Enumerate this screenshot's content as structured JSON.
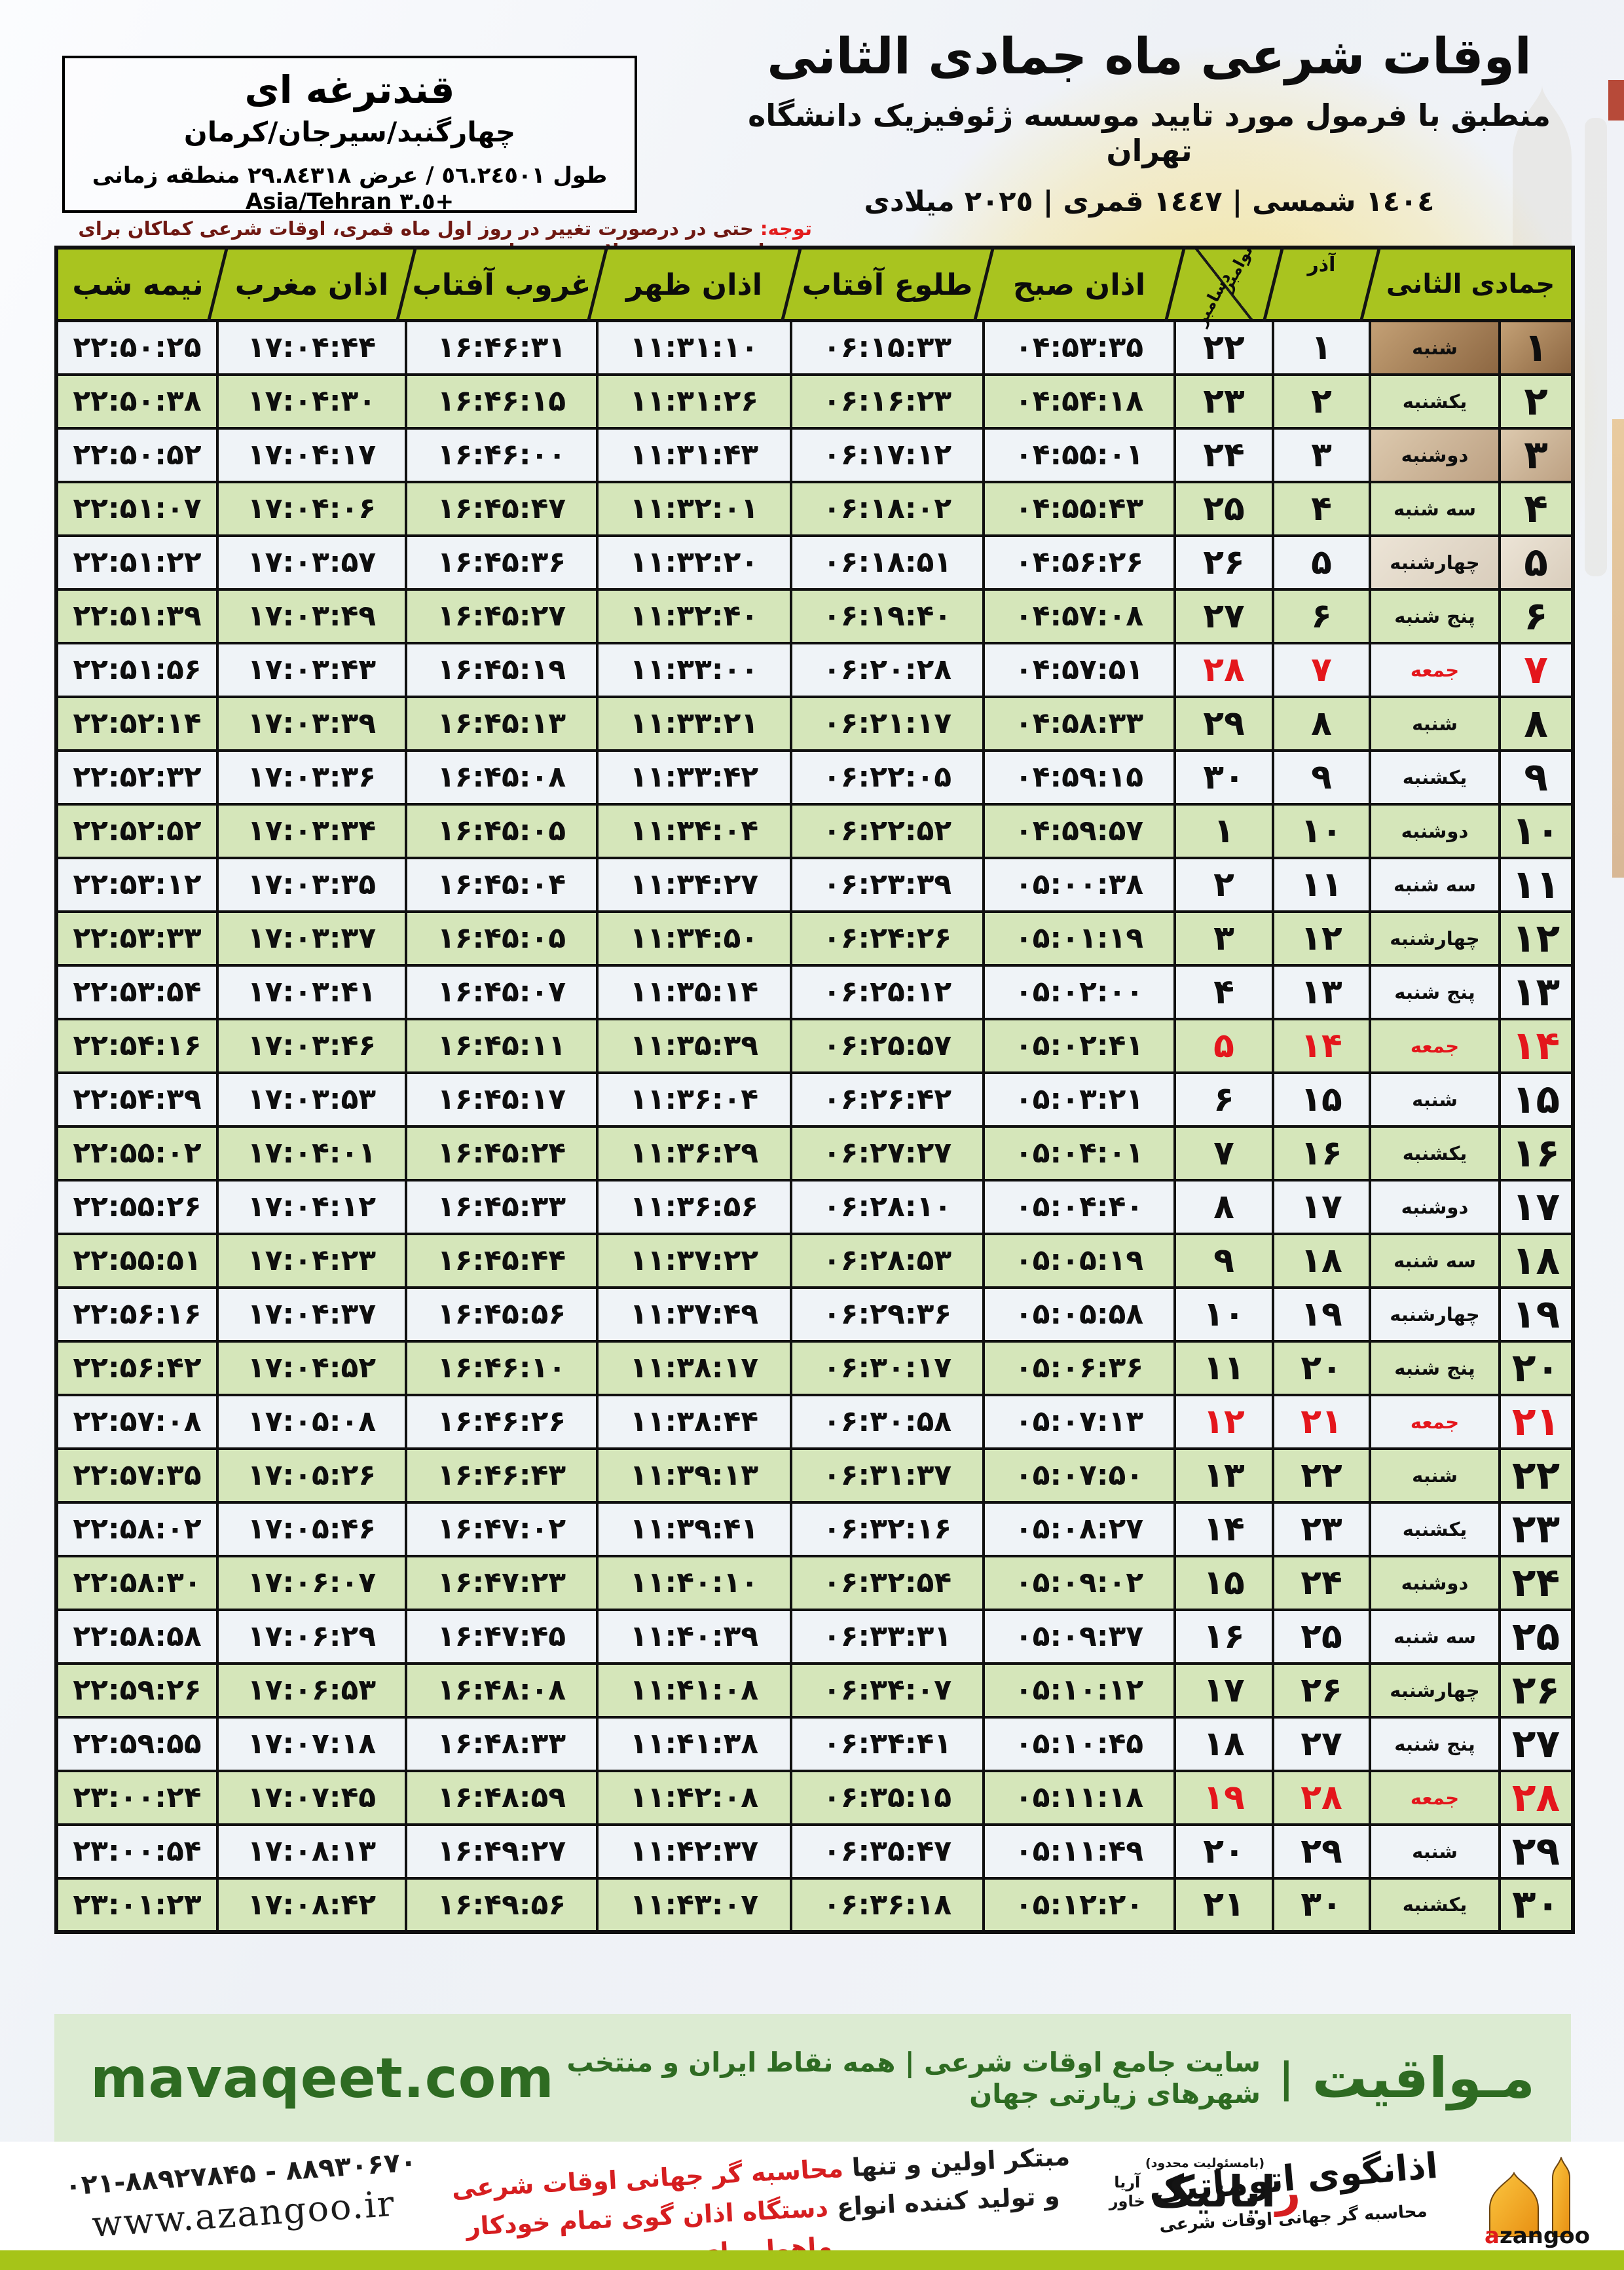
{
  "header": {
    "title": "اوقات شرعی ماه جمادی الثانی",
    "subtitle": "منطبق با فرمول مورد تایید موسسه ژئوفیزیک دانشگاه تهران",
    "dates": "١٤٠٤ شمسی | ١٤٤٧ قمری | ٢٠٢٥ میلادی"
  },
  "location": {
    "name": "قندترغه ای",
    "region": "چهارگنبد/سیرجان/کرمان",
    "coordinates": "طول ٥٦.٢٤٥٠١ / عرض ٢٩.٨٤٣١٨ منطقه زمانی +٣.٥ Asia/Tehran"
  },
  "notice": {
    "label": "توجه:",
    "text": " حتی در درصورت تغییر در روز اول ماه قمری، اوقات شرعی کماکان برای روزهای شمسی و میلادی معتبر است."
  },
  "table": {
    "headers": {
      "month_hijri": "جمادی الثانی",
      "azar": "آذر",
      "greg_top": "نوامبر",
      "greg_bottom": "دسامبر",
      "fajr": "اذان صبح",
      "sunrise": "طلوع آفتاب",
      "dhuhr": "اذان ظهر",
      "sunset": "غروب آفتاب",
      "maghrib": "اذان مغرب",
      "midnight": "نیمه شب"
    },
    "rows": [
      {
        "day": "۱",
        "weekday": "شنبه",
        "azar": "۱",
        "greg": "۲۲",
        "fajr": "۰۴:۵۳:۳۵",
        "sunrise": "۰۶:۱۵:۳۳",
        "dhuhr": "۱۱:۳۱:۱۰",
        "sunset": "۱۶:۴۶:۳۱",
        "maghrib": "۱۷:۰۴:۴۴",
        "midnight": "۲۲:۵۰:۲۵",
        "friday": false
      },
      {
        "day": "۲",
        "weekday": "یکشنبه",
        "azar": "۲",
        "greg": "۲۳",
        "fajr": "۰۴:۵۴:۱۸",
        "sunrise": "۰۶:۱۶:۲۳",
        "dhuhr": "۱۱:۳۱:۲۶",
        "sunset": "۱۶:۴۶:۱۵",
        "maghrib": "۱۷:۰۴:۳۰",
        "midnight": "۲۲:۵۰:۳۸",
        "friday": false
      },
      {
        "day": "۳",
        "weekday": "دوشنبه",
        "azar": "۳",
        "greg": "۲۴",
        "fajr": "۰۴:۵۵:۰۱",
        "sunrise": "۰۶:۱۷:۱۲",
        "dhuhr": "۱۱:۳۱:۴۳",
        "sunset": "۱۶:۴۶:۰۰",
        "maghrib": "۱۷:۰۴:۱۷",
        "midnight": "۲۲:۵۰:۵۲",
        "friday": false
      },
      {
        "day": "۴",
        "weekday": "سه شنبه",
        "azar": "۴",
        "greg": "۲۵",
        "fajr": "۰۴:۵۵:۴۳",
        "sunrise": "۰۶:۱۸:۰۲",
        "dhuhr": "۱۱:۳۲:۰۱",
        "sunset": "۱۶:۴۵:۴۷",
        "maghrib": "۱۷:۰۴:۰۶",
        "midnight": "۲۲:۵۱:۰۷",
        "friday": false
      },
      {
        "day": "۵",
        "weekday": "چهارشنبه",
        "azar": "۵",
        "greg": "۲۶",
        "fajr": "۰۴:۵۶:۲۶",
        "sunrise": "۰۶:۱۸:۵۱",
        "dhuhr": "۱۱:۳۲:۲۰",
        "sunset": "۱۶:۴۵:۳۶",
        "maghrib": "۱۷:۰۳:۵۷",
        "midnight": "۲۲:۵۱:۲۲",
        "friday": false
      },
      {
        "day": "۶",
        "weekday": "پنج شنبه",
        "azar": "۶",
        "greg": "۲۷",
        "fajr": "۰۴:۵۷:۰۸",
        "sunrise": "۰۶:۱۹:۴۰",
        "dhuhr": "۱۱:۳۲:۴۰",
        "sunset": "۱۶:۴۵:۲۷",
        "maghrib": "۱۷:۰۳:۴۹",
        "midnight": "۲۲:۵۱:۳۹",
        "friday": false
      },
      {
        "day": "۷",
        "weekday": "جمعه",
        "azar": "۷",
        "greg": "۲۸",
        "fajr": "۰۴:۵۷:۵۱",
        "sunrise": "۰۶:۲۰:۲۸",
        "dhuhr": "۱۱:۳۳:۰۰",
        "sunset": "۱۶:۴۵:۱۹",
        "maghrib": "۱۷:۰۳:۴۳",
        "midnight": "۲۲:۵۱:۵۶",
        "friday": true
      },
      {
        "day": "۸",
        "weekday": "شنبه",
        "azar": "۸",
        "greg": "۲۹",
        "fajr": "۰۴:۵۸:۳۳",
        "sunrise": "۰۶:۲۱:۱۷",
        "dhuhr": "۱۱:۳۳:۲۱",
        "sunset": "۱۶:۴۵:۱۳",
        "maghrib": "۱۷:۰۳:۳۹",
        "midnight": "۲۲:۵۲:۱۴",
        "friday": false
      },
      {
        "day": "۹",
        "weekday": "یکشنبه",
        "azar": "۹",
        "greg": "۳۰",
        "fajr": "۰۴:۵۹:۱۵",
        "sunrise": "۰۶:۲۲:۰۵",
        "dhuhr": "۱۱:۳۳:۴۲",
        "sunset": "۱۶:۴۵:۰۸",
        "maghrib": "۱۷:۰۳:۳۶",
        "midnight": "۲۲:۵۲:۳۲",
        "friday": false
      },
      {
        "day": "۱۰",
        "weekday": "دوشنبه",
        "azar": "۱۰",
        "greg": "۱",
        "fajr": "۰۴:۵۹:۵۷",
        "sunrise": "۰۶:۲۲:۵۲",
        "dhuhr": "۱۱:۳۴:۰۴",
        "sunset": "۱۶:۴۵:۰۵",
        "maghrib": "۱۷:۰۳:۳۴",
        "midnight": "۲۲:۵۲:۵۲",
        "friday": false
      },
      {
        "day": "۱۱",
        "weekday": "سه شنبه",
        "azar": "۱۱",
        "greg": "۲",
        "fajr": "۰۵:۰۰:۳۸",
        "sunrise": "۰۶:۲۳:۳۹",
        "dhuhr": "۱۱:۳۴:۲۷",
        "sunset": "۱۶:۴۵:۰۴",
        "maghrib": "۱۷:۰۳:۳۵",
        "midnight": "۲۲:۵۳:۱۲",
        "friday": false
      },
      {
        "day": "۱۲",
        "weekday": "چهارشنبه",
        "azar": "۱۲",
        "greg": "۳",
        "fajr": "۰۵:۰۱:۱۹",
        "sunrise": "۰۶:۲۴:۲۶",
        "dhuhr": "۱۱:۳۴:۵۰",
        "sunset": "۱۶:۴۵:۰۵",
        "maghrib": "۱۷:۰۳:۳۷",
        "midnight": "۲۲:۵۳:۳۳",
        "friday": false
      },
      {
        "day": "۱۳",
        "weekday": "پنج شنبه",
        "azar": "۱۳",
        "greg": "۴",
        "fajr": "۰۵:۰۲:۰۰",
        "sunrise": "۰۶:۲۵:۱۲",
        "dhuhr": "۱۱:۳۵:۱۴",
        "sunset": "۱۶:۴۵:۰۷",
        "maghrib": "۱۷:۰۳:۴۱",
        "midnight": "۲۲:۵۳:۵۴",
        "friday": false
      },
      {
        "day": "۱۴",
        "weekday": "جمعه",
        "azar": "۱۴",
        "greg": "۵",
        "fajr": "۰۵:۰۲:۴۱",
        "sunrise": "۰۶:۲۵:۵۷",
        "dhuhr": "۱۱:۳۵:۳۹",
        "sunset": "۱۶:۴۵:۱۱",
        "maghrib": "۱۷:۰۳:۴۶",
        "midnight": "۲۲:۵۴:۱۶",
        "friday": true
      },
      {
        "day": "۱۵",
        "weekday": "شنبه",
        "azar": "۱۵",
        "greg": "۶",
        "fajr": "۰۵:۰۳:۲۱",
        "sunrise": "۰۶:۲۶:۴۲",
        "dhuhr": "۱۱:۳۶:۰۴",
        "sunset": "۱۶:۴۵:۱۷",
        "maghrib": "۱۷:۰۳:۵۳",
        "midnight": "۲۲:۵۴:۳۹",
        "friday": false
      },
      {
        "day": "۱۶",
        "weekday": "یکشنبه",
        "azar": "۱۶",
        "greg": "۷",
        "fajr": "۰۵:۰۴:۰۱",
        "sunrise": "۰۶:۲۷:۲۷",
        "dhuhr": "۱۱:۳۶:۲۹",
        "sunset": "۱۶:۴۵:۲۴",
        "maghrib": "۱۷:۰۴:۰۱",
        "midnight": "۲۲:۵۵:۰۲",
        "friday": false
      },
      {
        "day": "۱۷",
        "weekday": "دوشنبه",
        "azar": "۱۷",
        "greg": "۸",
        "fajr": "۰۵:۰۴:۴۰",
        "sunrise": "۰۶:۲۸:۱۰",
        "dhuhr": "۱۱:۳۶:۵۶",
        "sunset": "۱۶:۴۵:۳۳",
        "maghrib": "۱۷:۰۴:۱۲",
        "midnight": "۲۲:۵۵:۲۶",
        "friday": false
      },
      {
        "day": "۱۸",
        "weekday": "سه شنبه",
        "azar": "۱۸",
        "greg": "۹",
        "fajr": "۰۵:۰۵:۱۹",
        "sunrise": "۰۶:۲۸:۵۳",
        "dhuhr": "۱۱:۳۷:۲۲",
        "sunset": "۱۶:۴۵:۴۴",
        "maghrib": "۱۷:۰۴:۲۳",
        "midnight": "۲۲:۵۵:۵۱",
        "friday": false
      },
      {
        "day": "۱۹",
        "weekday": "چهارشنبه",
        "azar": "۱۹",
        "greg": "۱۰",
        "fajr": "۰۵:۰۵:۵۸",
        "sunrise": "۰۶:۲۹:۳۶",
        "dhuhr": "۱۱:۳۷:۴۹",
        "sunset": "۱۶:۴۵:۵۶",
        "maghrib": "۱۷:۰۴:۳۷",
        "midnight": "۲۲:۵۶:۱۶",
        "friday": false
      },
      {
        "day": "۲۰",
        "weekday": "پنج شنبه",
        "azar": "۲۰",
        "greg": "۱۱",
        "fajr": "۰۵:۰۶:۳۶",
        "sunrise": "۰۶:۳۰:۱۷",
        "dhuhr": "۱۱:۳۸:۱۷",
        "sunset": "۱۶:۴۶:۱۰",
        "maghrib": "۱۷:۰۴:۵۲",
        "midnight": "۲۲:۵۶:۴۲",
        "friday": false
      },
      {
        "day": "۲۱",
        "weekday": "جمعه",
        "azar": "۲۱",
        "greg": "۱۲",
        "fajr": "۰۵:۰۷:۱۳",
        "sunrise": "۰۶:۳۰:۵۸",
        "dhuhr": "۱۱:۳۸:۴۴",
        "sunset": "۱۶:۴۶:۲۶",
        "maghrib": "۱۷:۰۵:۰۸",
        "midnight": "۲۲:۵۷:۰۸",
        "friday": true
      },
      {
        "day": "۲۲",
        "weekday": "شنبه",
        "azar": "۲۲",
        "greg": "۱۳",
        "fajr": "۰۵:۰۷:۵۰",
        "sunrise": "۰۶:۳۱:۳۷",
        "dhuhr": "۱۱:۳۹:۱۳",
        "sunset": "۱۶:۴۶:۴۳",
        "maghrib": "۱۷:۰۵:۲۶",
        "midnight": "۲۲:۵۷:۳۵",
        "friday": false
      },
      {
        "day": "۲۳",
        "weekday": "یکشنبه",
        "azar": "۲۳",
        "greg": "۱۴",
        "fajr": "۰۵:۰۸:۲۷",
        "sunrise": "۰۶:۳۲:۱۶",
        "dhuhr": "۱۱:۳۹:۴۱",
        "sunset": "۱۶:۴۷:۰۲",
        "maghrib": "۱۷:۰۵:۴۶",
        "midnight": "۲۲:۵۸:۰۲",
        "friday": false
      },
      {
        "day": "۲۴",
        "weekday": "دوشنبه",
        "azar": "۲۴",
        "greg": "۱۵",
        "fajr": "۰۵:۰۹:۰۲",
        "sunrise": "۰۶:۳۲:۵۴",
        "dhuhr": "۱۱:۴۰:۱۰",
        "sunset": "۱۶:۴۷:۲۳",
        "maghrib": "۱۷:۰۶:۰۷",
        "midnight": "۲۲:۵۸:۳۰",
        "friday": false
      },
      {
        "day": "۲۵",
        "weekday": "سه شنبه",
        "azar": "۲۵",
        "greg": "۱۶",
        "fajr": "۰۵:۰۹:۳۷",
        "sunrise": "۰۶:۳۳:۳۱",
        "dhuhr": "۱۱:۴۰:۳۹",
        "sunset": "۱۶:۴۷:۴۵",
        "maghrib": "۱۷:۰۶:۲۹",
        "midnight": "۲۲:۵۸:۵۸",
        "friday": false
      },
      {
        "day": "۲۶",
        "weekday": "چهارشنبه",
        "azar": "۲۶",
        "greg": "۱۷",
        "fajr": "۰۵:۱۰:۱۲",
        "sunrise": "۰۶:۳۴:۰۷",
        "dhuhr": "۱۱:۴۱:۰۸",
        "sunset": "۱۶:۴۸:۰۸",
        "maghrib": "۱۷:۰۶:۵۳",
        "midnight": "۲۲:۵۹:۲۶",
        "friday": false
      },
      {
        "day": "۲۷",
        "weekday": "پنج شنبه",
        "azar": "۲۷",
        "greg": "۱۸",
        "fajr": "۰۵:۱۰:۴۵",
        "sunrise": "۰۶:۳۴:۴۱",
        "dhuhr": "۱۱:۴۱:۳۸",
        "sunset": "۱۶:۴۸:۳۳",
        "maghrib": "۱۷:۰۷:۱۸",
        "midnight": "۲۲:۵۹:۵۵",
        "friday": false
      },
      {
        "day": "۲۸",
        "weekday": "جمعه",
        "azar": "۲۸",
        "greg": "۱۹",
        "fajr": "۰۵:۱۱:۱۸",
        "sunrise": "۰۶:۳۵:۱۵",
        "dhuhr": "۱۱:۴۲:۰۸",
        "sunset": "۱۶:۴۸:۵۹",
        "maghrib": "۱۷:۰۷:۴۵",
        "midnight": "۲۳:۰۰:۲۴",
        "friday": true
      },
      {
        "day": "۲۹",
        "weekday": "شنبه",
        "azar": "۲۹",
        "greg": "۲۰",
        "fajr": "۰۵:۱۱:۴۹",
        "sunrise": "۰۶:۳۵:۴۷",
        "dhuhr": "۱۱:۴۲:۳۷",
        "sunset": "۱۶:۴۹:۲۷",
        "maghrib": "۱۷:۰۸:۱۳",
        "midnight": "۲۳:۰۰:۵۴",
        "friday": false
      },
      {
        "day": "۳۰",
        "weekday": "یکشنبه",
        "azar": "۳۰",
        "greg": "۲۱",
        "fajr": "۰۵:۱۲:۲۰",
        "sunrise": "۰۶:۳۶:۱۸",
        "dhuhr": "۱۱:۴۳:۰۷",
        "sunset": "۱۶:۴۹:۵۶",
        "maghrib": "۱۷:۰۸:۴۲",
        "midnight": "۲۳:۰۱:۲۳",
        "friday": false
      }
    ]
  },
  "footer": {
    "brand_fa": "مـواقیت",
    "sep": "|",
    "tagline": "سایت جامع اوقات شرعی | همه نقاط ایران و منتخب شهرهای زیارتی جهان",
    "site": "mavaqeet.com"
  },
  "bottom": {
    "phone": "۰۲۱-۸۸۹۲۷۸۴۵ - ۸۸۹۳۰۶۷۰",
    "website": "www.azangoo.ir",
    "promo_line1_black": "مبتکر اولین و تنها ",
    "promo_line1_red": "محاسبه گر جهانی اوقات شرعی",
    "promo_line2_black": "و تولید کننده انواع ",
    "promo_line2_red": "دستگاه اذان گوی تمام خودکار ماهواره ای",
    "rayanik_llc": "(بامسئولیت محدود)",
    "rayanik_word_red": "ر",
    "rayanik_word_rest": "ایانیک",
    "rayanik_sub_top": "آریا",
    "rayanik_sub_bottom": "خاور",
    "azangoo_script": "اذانگوی اتوماتیک",
    "azangoo_sub": "محاسبه گر جهانی اوقات شرعی",
    "azangoo_word_red": "a",
    "azangoo_word_rest": "zangoo"
  },
  "colors": {
    "header_green": "#a9c41f",
    "row_green": "#d5e6ba",
    "row_light": "#eff3f7",
    "friday_red": "#e4161c",
    "footer_bg": "#dcebd2",
    "footer_text": "#2e6b22",
    "bottom_strip": "#a6c418",
    "logo_orange": "#f2a024"
  }
}
